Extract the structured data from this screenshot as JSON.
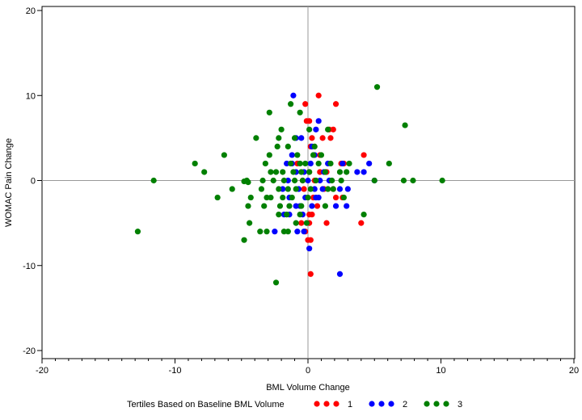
{
  "chart_data": {
    "type": "scatter",
    "xlabel": "BML Volume Change",
    "ylabel": "WOMAC Pain Change",
    "xlim": [
      -20,
      20
    ],
    "ylim": [
      -20,
      20
    ],
    "xticks": [
      -20,
      -10,
      0,
      10,
      20
    ],
    "yticks": [
      -20,
      -10,
      0,
      10,
      20
    ],
    "grid": false,
    "reference_lines": {
      "x": 0,
      "y": 0
    },
    "legend": {
      "title": "Tertiles Based on Baseline BML Volume",
      "placement": "bottom"
    },
    "series": [
      {
        "name": "1",
        "color": "#ff0000",
        "points": [
          [
            0.8,
            10
          ],
          [
            -0.2,
            9
          ],
          [
            2.1,
            9
          ],
          [
            -0.1,
            7
          ],
          [
            0.1,
            7
          ],
          [
            1.6,
            6
          ],
          [
            1.9,
            6
          ],
          [
            1.1,
            5
          ],
          [
            1.7,
            5
          ],
          [
            0.3,
            5
          ],
          [
            0.2,
            4
          ],
          [
            4.2,
            3
          ],
          [
            0.9,
            3
          ],
          [
            2.5,
            2
          ],
          [
            2.7,
            2
          ],
          [
            -0.8,
            2
          ],
          [
            1.4,
            1
          ],
          [
            0.1,
            1
          ],
          [
            0.5,
            0
          ],
          [
            1.9,
            -1
          ],
          [
            -0.4,
            0
          ],
          [
            2.1,
            -2
          ],
          [
            0.7,
            -3
          ],
          [
            2.6,
            -2
          ],
          [
            0.4,
            -2
          ],
          [
            -0.3,
            -1
          ],
          [
            0.3,
            -4
          ],
          [
            0.1,
            -4
          ],
          [
            1.4,
            -5
          ],
          [
            4,
            -5
          ],
          [
            -0.5,
            -5
          ],
          [
            0.1,
            -5
          ],
          [
            0,
            -7
          ],
          [
            0.2,
            -7
          ],
          [
            0.2,
            -11
          ],
          [
            -0.2,
            -6
          ],
          [
            1.2,
            -1
          ],
          [
            0.9,
            1
          ]
        ]
      },
      {
        "name": "2",
        "color": "#0000ff",
        "points": [
          [
            -1.1,
            10
          ],
          [
            0.8,
            7
          ],
          [
            0.6,
            6
          ],
          [
            -0.5,
            5
          ],
          [
            -0.9,
            5
          ],
          [
            0.3,
            4
          ],
          [
            -1.2,
            3
          ],
          [
            0.5,
            3
          ],
          [
            -1.6,
            2
          ],
          [
            -1.2,
            2
          ],
          [
            0.2,
            2
          ],
          [
            1.5,
            2
          ],
          [
            2.6,
            2
          ],
          [
            4.6,
            2
          ],
          [
            -0.9,
            1
          ],
          [
            -0.3,
            1
          ],
          [
            1.2,
            1
          ],
          [
            3.7,
            1
          ],
          [
            4.2,
            1
          ],
          [
            -1.5,
            0
          ],
          [
            0,
            0
          ],
          [
            0.9,
            0
          ],
          [
            1.6,
            0
          ],
          [
            5,
            0
          ],
          [
            -1.9,
            -1
          ],
          [
            -0.7,
            -1
          ],
          [
            0.5,
            -1
          ],
          [
            2.4,
            -1
          ],
          [
            3,
            -1
          ],
          [
            -1.4,
            -2
          ],
          [
            -0.2,
            -2
          ],
          [
            0.8,
            -2
          ],
          [
            -0.9,
            -3
          ],
          [
            0.3,
            -3
          ],
          [
            2.1,
            -3
          ],
          [
            2.9,
            -3
          ],
          [
            -1.8,
            -4
          ],
          [
            -1.4,
            -4
          ],
          [
            -0.4,
            -4
          ],
          [
            -0.8,
            -6
          ],
          [
            -0.3,
            -6
          ],
          [
            -2.5,
            -6
          ],
          [
            0.1,
            -8
          ],
          [
            2.4,
            -11
          ],
          [
            -0.6,
            -3
          ],
          [
            1.1,
            -1
          ],
          [
            0.6,
            -2
          ]
        ]
      },
      {
        "name": "3",
        "color": "#008000",
        "points": [
          [
            5.2,
            11
          ],
          [
            -1.3,
            9
          ],
          [
            -2.9,
            8
          ],
          [
            -0.6,
            8
          ],
          [
            7.3,
            6.5
          ],
          [
            -2,
            6
          ],
          [
            0.1,
            6
          ],
          [
            1.5,
            6
          ],
          [
            -3.9,
            5
          ],
          [
            -2.2,
            5
          ],
          [
            -1,
            5
          ],
          [
            0.5,
            4
          ],
          [
            -2.3,
            4
          ],
          [
            -1.5,
            4
          ],
          [
            -6.3,
            3
          ],
          [
            -2.9,
            3
          ],
          [
            -0.8,
            3
          ],
          [
            0.4,
            3
          ],
          [
            1,
            3
          ],
          [
            -8.5,
            2
          ],
          [
            -3.2,
            2
          ],
          [
            -1.3,
            2
          ],
          [
            -0.6,
            2
          ],
          [
            -0.2,
            2
          ],
          [
            0.8,
            2
          ],
          [
            1.7,
            2
          ],
          [
            3.1,
            2
          ],
          [
            6.1,
            2
          ],
          [
            -7.8,
            1
          ],
          [
            -2.8,
            1
          ],
          [
            -2.4,
            1
          ],
          [
            -1.9,
            1
          ],
          [
            -1.1,
            1
          ],
          [
            -0.5,
            1
          ],
          [
            0.1,
            1
          ],
          [
            1.3,
            1
          ],
          [
            2.4,
            1
          ],
          [
            2.9,
            1
          ],
          [
            -11.6,
            0
          ],
          [
            -4.6,
            0
          ],
          [
            -4.5,
            -0.2
          ],
          [
            -4.8,
            -0.1
          ],
          [
            -3.4,
            0
          ],
          [
            -2.6,
            0
          ],
          [
            -1.8,
            0
          ],
          [
            -1,
            0
          ],
          [
            -0.4,
            0
          ],
          [
            0.6,
            0
          ],
          [
            1.8,
            0
          ],
          [
            2.5,
            0
          ],
          [
            5,
            0
          ],
          [
            7.2,
            0
          ],
          [
            7.9,
            0
          ],
          [
            10.1,
            0
          ],
          [
            -6.8,
            -2
          ],
          [
            -5.7,
            -1
          ],
          [
            -3.5,
            -1
          ],
          [
            -2.2,
            -1
          ],
          [
            -1.5,
            -1
          ],
          [
            -0.9,
            -1
          ],
          [
            0.2,
            -1
          ],
          [
            1.5,
            -1
          ],
          [
            1.9,
            -1
          ],
          [
            -4.3,
            -2
          ],
          [
            -3.1,
            -2
          ],
          [
            -2.8,
            -2
          ],
          [
            -1.9,
            -2
          ],
          [
            -1.2,
            -2
          ],
          [
            0,
            -2
          ],
          [
            2.7,
            -2
          ],
          [
            -4.5,
            -3
          ],
          [
            -3.3,
            -3
          ],
          [
            -2.1,
            -3
          ],
          [
            -1.4,
            -3
          ],
          [
            -0.5,
            -3
          ],
          [
            1.3,
            -3
          ],
          [
            -2.2,
            -4
          ],
          [
            -1.6,
            -4
          ],
          [
            -0.6,
            -4
          ],
          [
            4.2,
            -4
          ],
          [
            -4.4,
            -5
          ],
          [
            -0.9,
            -5
          ],
          [
            -0.1,
            -5
          ],
          [
            -12.8,
            -6
          ],
          [
            -3.6,
            -6
          ],
          [
            -3.1,
            -6
          ],
          [
            -1.8,
            -6
          ],
          [
            -1.5,
            -6
          ],
          [
            -4.8,
            -7
          ],
          [
            -2.4,
            -12
          ]
        ]
      }
    ]
  }
}
